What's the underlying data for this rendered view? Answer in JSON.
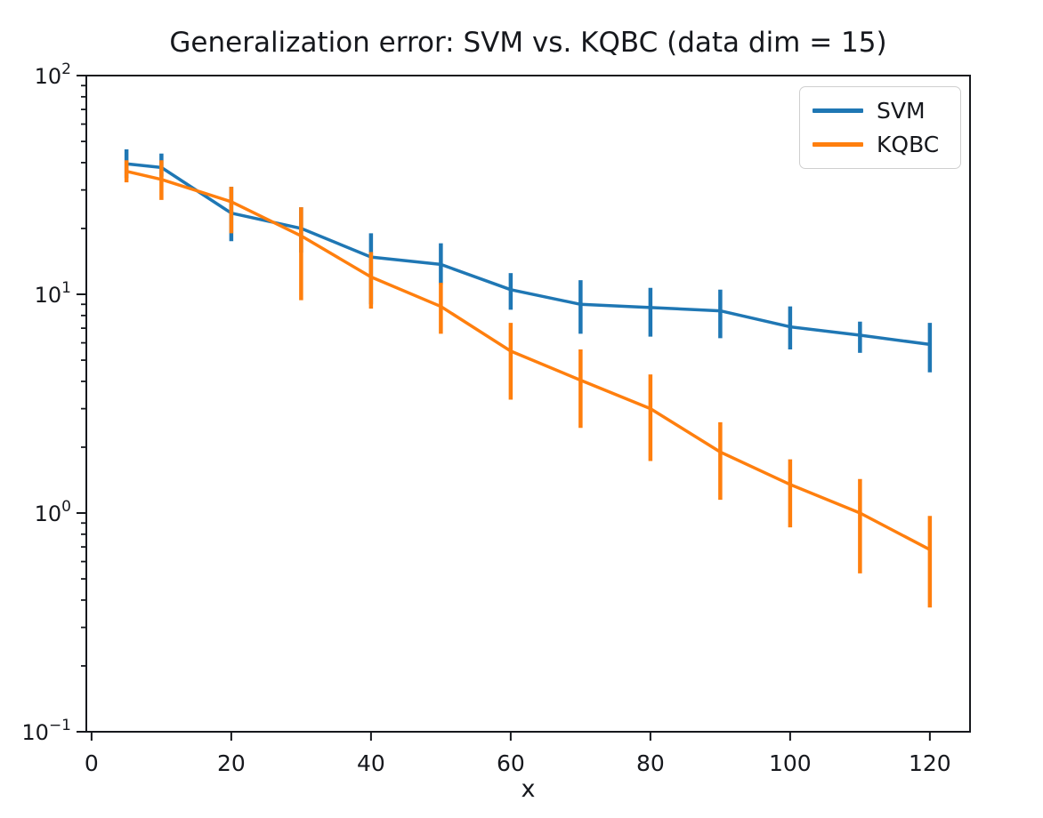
{
  "chart_data": {
    "type": "line",
    "title": "Generalization error: SVM vs. KQBC (data dim = 15)",
    "xlabel": "x",
    "ylabel": "",
    "x_scale": "linear",
    "y_scale": "log",
    "xlim": [
      -0.75,
      125.75
    ],
    "ylim": [
      0.1,
      100
    ],
    "x_ticks": [
      0,
      20,
      40,
      60,
      80,
      100,
      120
    ],
    "y_tick_exponents": [
      2,
      1,
      0,
      -1
    ],
    "grid": false,
    "legend_position": "upper right",
    "error_bars": true,
    "x": [
      5,
      10,
      20,
      30,
      40,
      50,
      60,
      70,
      80,
      90,
      100,
      110,
      120
    ],
    "series": [
      {
        "name": "SVM",
        "color": "#1f77b4",
        "values": [
          39.5,
          38,
          23.5,
          20,
          14.8,
          13.7,
          10.5,
          9.0,
          8.7,
          8.4,
          7.1,
          6.5,
          5.9
        ],
        "err_lo": [
          34,
          34.5,
          17.5,
          15.5,
          9.0,
          11.1,
          8.5,
          6.6,
          6.4,
          6.3,
          5.6,
          5.4,
          4.4
        ],
        "err_hi": [
          46,
          44,
          31,
          25,
          19,
          17.1,
          12.5,
          11.6,
          10.7,
          10.5,
          8.8,
          7.5,
          7.4
        ]
      },
      {
        "name": "KQBC",
        "color": "#ff7f0e",
        "values": [
          36.5,
          33.5,
          26.5,
          18.5,
          12,
          8.8,
          5.5,
          4.05,
          3.0,
          1.9,
          1.35,
          1.0,
          0.68
        ],
        "err_lo": [
          32.5,
          27,
          19,
          9.4,
          8.6,
          6.6,
          3.3,
          2.45,
          1.73,
          1.15,
          0.86,
          0.53,
          0.37
        ],
        "err_hi": [
          41,
          41,
          31,
          25,
          15.6,
          11.3,
          7.4,
          5.6,
          4.3,
          2.6,
          1.76,
          1.43,
          0.97
        ]
      }
    ]
  }
}
